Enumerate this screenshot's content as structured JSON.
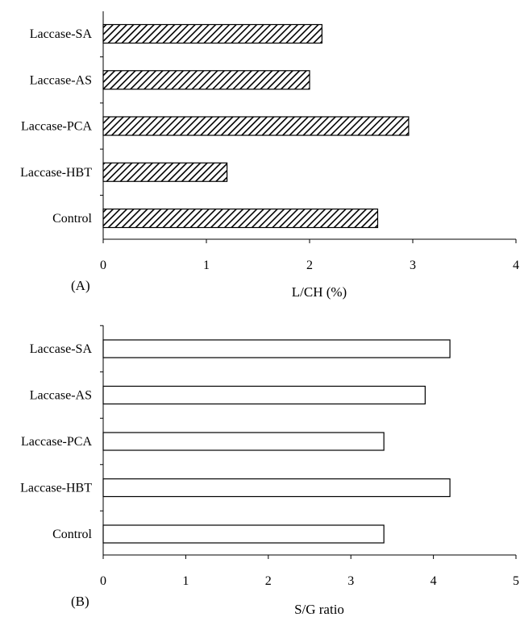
{
  "chart_data": [
    {
      "type": "bar",
      "orientation": "horizontal",
      "panel_label": "(A)",
      "xlabel": "L/CH (%)",
      "categories": [
        "Laccase-SA",
        "Laccase-AS",
        "Laccase-PCA",
        "Laccase-HBT",
        "Control"
      ],
      "values": [
        2.12,
        2.0,
        2.96,
        1.2,
        2.66
      ],
      "xlim": [
        0,
        4
      ],
      "xticks": [
        "0",
        "1",
        "2",
        "3",
        "4"
      ],
      "bar_fill": "hatched",
      "grid": false
    },
    {
      "type": "bar",
      "orientation": "horizontal",
      "panel_label": "(B)",
      "xlabel": "S/G ratio",
      "categories": [
        "Laccase-SA",
        "Laccase-AS",
        "Laccase-PCA",
        "Laccase-HBT",
        "Control"
      ],
      "values": [
        4.2,
        3.9,
        3.4,
        4.2,
        3.4
      ],
      "xlim": [
        0,
        5
      ],
      "xticks": [
        "0",
        "1",
        "2",
        "3",
        "4",
        "5"
      ],
      "bar_fill": "white",
      "grid": false
    }
  ]
}
